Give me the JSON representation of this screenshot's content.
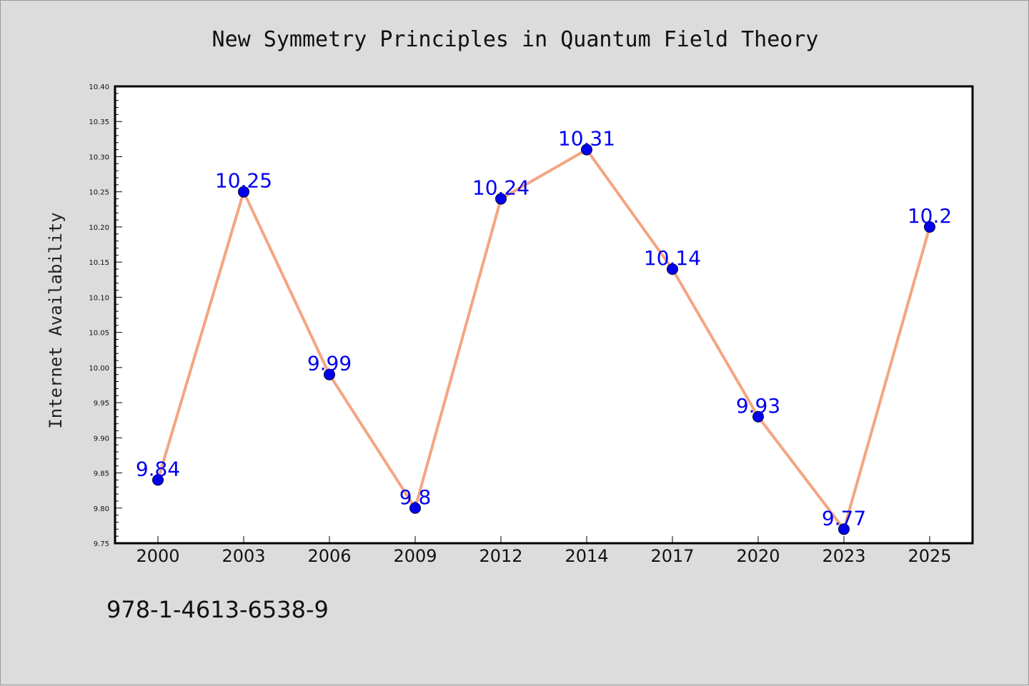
{
  "chart_data": {
    "type": "line",
    "title": "New Symmetry Principles in Quantum Field Theory",
    "xlabel": "",
    "ylabel": "Internet Availability",
    "categories": [
      "2000",
      "2003",
      "2006",
      "2009",
      "2012",
      "2014",
      "2017",
      "2020",
      "2023",
      "2025"
    ],
    "series": [
      {
        "values": [
          9.84,
          10.25,
          9.99,
          9.8,
          10.24,
          10.31,
          10.14,
          9.93,
          9.77,
          10.2
        ],
        "data_labels": [
          "9.84",
          "10.25",
          "9.99",
          "9.8",
          "10.24",
          "10.31",
          "10.14",
          "9.93",
          "9.77",
          "10.2"
        ]
      }
    ],
    "ylim": [
      9.75,
      10.4
    ],
    "yticks": [
      "9.75",
      "9.80",
      "9.85",
      "9.90",
      "9.95",
      "10.00",
      "10.05",
      "10.10",
      "10.15",
      "10.20",
      "10.25",
      "10.30",
      "10.35",
      "10.40"
    ],
    "grid": false,
    "legend": "none",
    "colors": {
      "line": "#f4a582",
      "marker": "#0000ee",
      "data_label": "#0000ee",
      "background": "#dcdcdc",
      "plot_background": "#ffffff"
    }
  },
  "footer": {
    "isbn": "978-1-4613-6538-9"
  }
}
